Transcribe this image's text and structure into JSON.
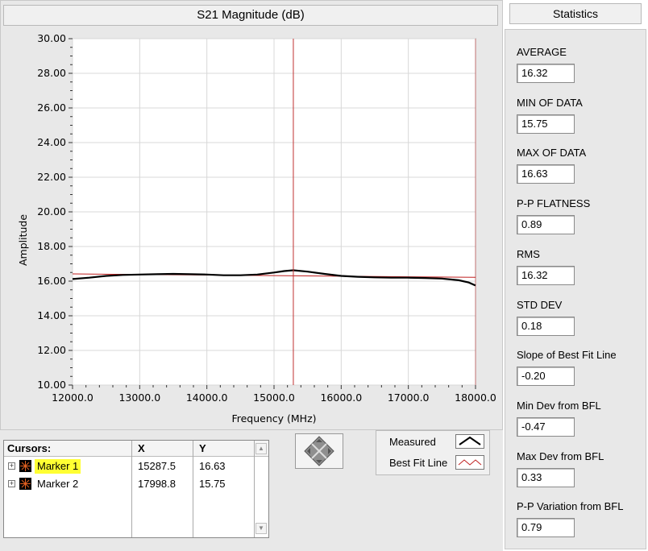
{
  "plot": {
    "title": "S21 Magnitude (dB)"
  },
  "chart_data": {
    "type": "line",
    "title": "S21 Magnitude (dB)",
    "xlabel": "Frequency (MHz)",
    "ylabel": "Amplitude",
    "xlim": [
      12000,
      18000
    ],
    "ylim": [
      10,
      30
    ],
    "x_ticks": [
      "12000.0",
      "13000.0",
      "14000.0",
      "15000.0",
      "16000.0",
      "17000.0",
      "18000.0"
    ],
    "y_ticks": [
      "10.00",
      "12.00",
      "14.00",
      "16.00",
      "18.00",
      "20.00",
      "22.00",
      "24.00",
      "26.00",
      "28.00",
      "30.00"
    ],
    "grid": true,
    "cursor_x": 15287.5,
    "series": [
      {
        "name": "Measured",
        "color": "#000000",
        "x": [
          12000,
          12250,
          12500,
          12750,
          13000,
          13250,
          13500,
          13750,
          14000,
          14250,
          14500,
          14750,
          15000,
          15150,
          15287.5,
          15500,
          15750,
          16000,
          16250,
          16500,
          16750,
          17000,
          17250,
          17500,
          17750,
          17900,
          17998.8
        ],
        "y": [
          16.12,
          16.2,
          16.3,
          16.36,
          16.38,
          16.4,
          16.42,
          16.4,
          16.38,
          16.34,
          16.34,
          16.38,
          16.5,
          16.58,
          16.63,
          16.55,
          16.42,
          16.3,
          16.25,
          16.22,
          16.2,
          16.2,
          16.18,
          16.15,
          16.05,
          15.92,
          15.75
        ]
      },
      {
        "name": "Best Fit Line",
        "color": "#c02020",
        "x": [
          12000,
          18000
        ],
        "y": [
          16.42,
          16.22
        ]
      }
    ]
  },
  "statistics": {
    "header": "Statistics",
    "items": [
      {
        "label": "AVERAGE",
        "value": "16.32"
      },
      {
        "label": "MIN OF DATA",
        "value": "15.75"
      },
      {
        "label": "MAX OF DATA",
        "value": "16.63"
      },
      {
        "label": "P-P FLATNESS",
        "value": "0.89"
      },
      {
        "label": "RMS",
        "value": "16.32"
      },
      {
        "label": "STD DEV",
        "value": "0.18"
      },
      {
        "label": "Slope of Best Fit Line",
        "value": "-0.20"
      },
      {
        "label": "Min Dev from BFL",
        "value": "-0.47"
      },
      {
        "label": "Max Dev from BFL",
        "value": "0.33"
      },
      {
        "label": "P-P Variation from BFL",
        "value": "0.79"
      }
    ]
  },
  "cursors": {
    "header_name": "Cursors:",
    "header_x": "X",
    "header_y": "Y",
    "rows": [
      {
        "name": "Marker 1",
        "x": "15287.5",
        "y": "16.63",
        "highlight": true
      },
      {
        "name": "Marker 2",
        "x": "17998.8",
        "y": "15.75",
        "highlight": false
      }
    ]
  },
  "legend": {
    "measured": "Measured",
    "best_fit": "Best Fit Line"
  },
  "icons": {
    "navigation": "cursor-move-diamond-icon",
    "marker": "crosshair-marker-icon",
    "expand": "plus-expand-icon"
  }
}
